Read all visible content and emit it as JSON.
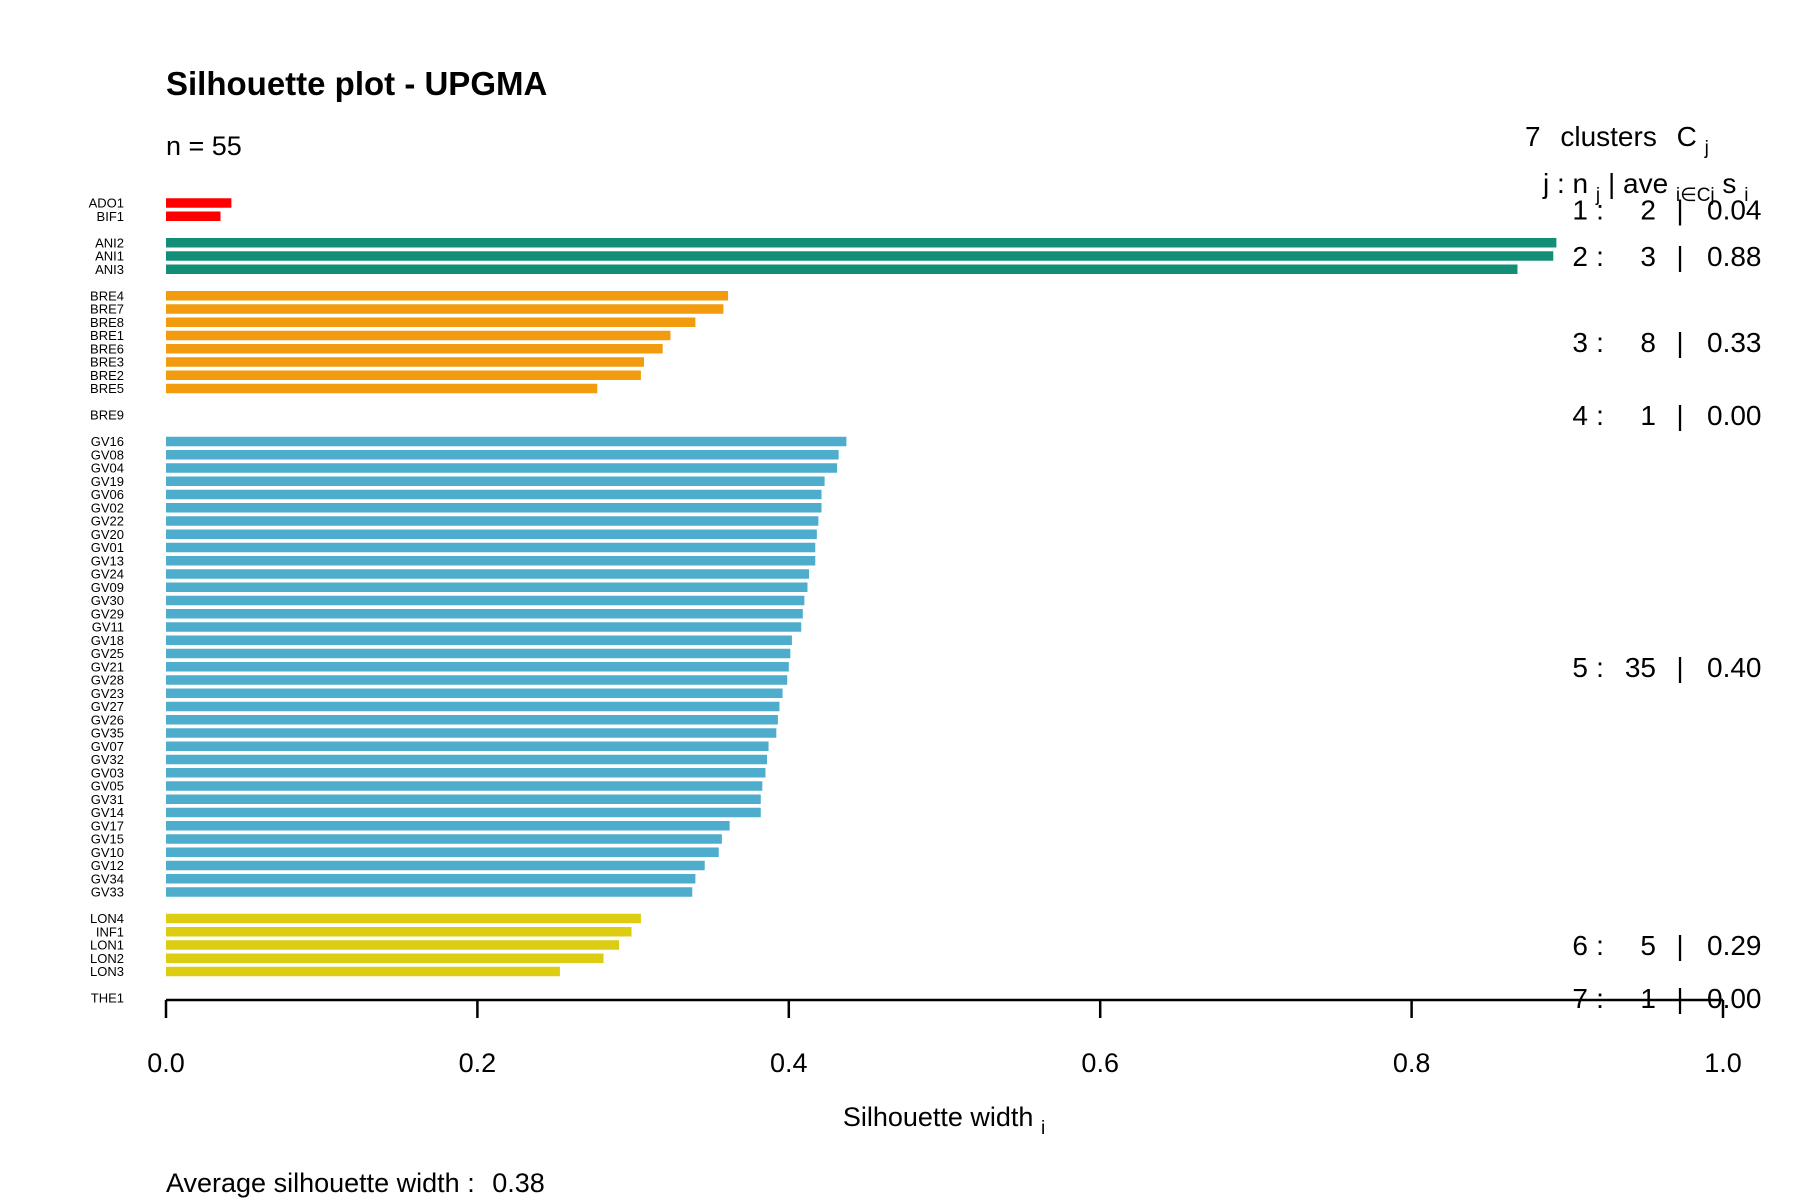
{
  "chart_data": {
    "type": "bar",
    "orientation": "horizontal",
    "title": "Silhouette plot - UPGMA",
    "subtitle": "n = 55",
    "xlabel": "Silhouette width",
    "xlabel_sub": "i",
    "xlim": [
      0,
      1
    ],
    "xticks": [
      "0.0",
      "0.2",
      "0.4",
      "0.6",
      "0.8",
      "1.0"
    ],
    "average_label": "Average silhouette width :",
    "average_value": "0.38",
    "cluster_header": {
      "count": "7",
      "word": "clusters",
      "symbol": "C",
      "symbol_sub": "j",
      "columns": "j :  n",
      "columns_sub": "j",
      "columns_mid": " | ave",
      "columns_mid_sub": "i∈Cj",
      "columns_end": " s",
      "columns_end_sub": "i"
    },
    "clusters": [
      {
        "j": "1",
        "n": "2",
        "ave": "0.04",
        "color": "#ff0000",
        "items": [
          {
            "label": "ADO1",
            "value": 0.042
          },
          {
            "label": "BIF1",
            "value": 0.035
          }
        ]
      },
      {
        "j": "2",
        "n": "3",
        "ave": "0.88",
        "color": "#138f78",
        "items": [
          {
            "label": "ANI2",
            "value": 0.893
          },
          {
            "label": "ANI1",
            "value": 0.891
          },
          {
            "label": "ANI3",
            "value": 0.868
          }
        ]
      },
      {
        "j": "3",
        "n": "8",
        "ave": "0.33",
        "color": "#f29b0e",
        "items": [
          {
            "label": "BRE4",
            "value": 0.361
          },
          {
            "label": "BRE7",
            "value": 0.358
          },
          {
            "label": "BRE8",
            "value": 0.34
          },
          {
            "label": "BRE1",
            "value": 0.324
          },
          {
            "label": "BRE6",
            "value": 0.319
          },
          {
            "label": "BRE3",
            "value": 0.307
          },
          {
            "label": "BRE2",
            "value": 0.305
          },
          {
            "label": "BRE5",
            "value": 0.277
          }
        ]
      },
      {
        "j": "4",
        "n": "1",
        "ave": "0.00",
        "color": "#999999",
        "items": [
          {
            "label": "BRE9",
            "value": 0
          }
        ]
      },
      {
        "j": "5",
        "n": "35",
        "ave": "0.40",
        "color": "#4eadcd",
        "items": [
          {
            "label": "GV16",
            "value": 0.437
          },
          {
            "label": "GV08",
            "value": 0.432
          },
          {
            "label": "GV04",
            "value": 0.431
          },
          {
            "label": "GV19",
            "value": 0.423
          },
          {
            "label": "GV06",
            "value": 0.421
          },
          {
            "label": "GV02",
            "value": 0.421
          },
          {
            "label": "GV22",
            "value": 0.419
          },
          {
            "label": "GV20",
            "value": 0.418
          },
          {
            "label": "GV01",
            "value": 0.417
          },
          {
            "label": "GV13",
            "value": 0.417
          },
          {
            "label": "GV24",
            "value": 0.413
          },
          {
            "label": "GV09",
            "value": 0.412
          },
          {
            "label": "GV30",
            "value": 0.41
          },
          {
            "label": "GV29",
            "value": 0.409
          },
          {
            "label": "GV11",
            "value": 0.408
          },
          {
            "label": "GV18",
            "value": 0.402
          },
          {
            "label": "GV25",
            "value": 0.401
          },
          {
            "label": "GV21",
            "value": 0.4
          },
          {
            "label": "GV28",
            "value": 0.399
          },
          {
            "label": "GV23",
            "value": 0.396
          },
          {
            "label": "GV27",
            "value": 0.394
          },
          {
            "label": "GV26",
            "value": 0.393
          },
          {
            "label": "GV35",
            "value": 0.392
          },
          {
            "label": "GV07",
            "value": 0.387
          },
          {
            "label": "GV32",
            "value": 0.386
          },
          {
            "label": "GV03",
            "value": 0.385
          },
          {
            "label": "GV05",
            "value": 0.383
          },
          {
            "label": "GV31",
            "value": 0.382
          },
          {
            "label": "GV14",
            "value": 0.382
          },
          {
            "label": "GV17",
            "value": 0.362
          },
          {
            "label": "GV15",
            "value": 0.357
          },
          {
            "label": "GV10",
            "value": 0.355
          },
          {
            "label": "GV12",
            "value": 0.346
          },
          {
            "label": "GV34",
            "value": 0.34
          },
          {
            "label": "GV33",
            "value": 0.338
          }
        ]
      },
      {
        "j": "6",
        "n": "5",
        "ave": "0.29",
        "color": "#dccc12",
        "items": [
          {
            "label": "LON4",
            "value": 0.305
          },
          {
            "label": "INF1",
            "value": 0.299
          },
          {
            "label": "LON1",
            "value": 0.291
          },
          {
            "label": "LON2",
            "value": 0.281
          },
          {
            "label": "LON3",
            "value": 0.253
          }
        ]
      },
      {
        "j": "7",
        "n": "1",
        "ave": "0.00",
        "color": "#999999",
        "items": [
          {
            "label": "THE1",
            "value": 0
          }
        ]
      }
    ]
  }
}
